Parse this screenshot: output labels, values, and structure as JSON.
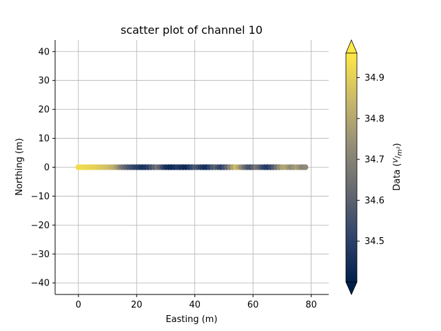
{
  "chart_data": {
    "type": "scatter",
    "title": "scatter plot of channel 10",
    "xlabel": "Easting (m)",
    "ylabel": "Northing (m)",
    "xlim": [
      -8,
      86
    ],
    "ylim": [
      -44,
      44
    ],
    "xticks": [
      0,
      20,
      40,
      60,
      80
    ],
    "yticks": [
      -40,
      -30,
      -20,
      -10,
      0,
      10,
      20,
      30,
      40
    ],
    "grid": true,
    "colorbar": {
      "label": "Data (V/m²)",
      "range": [
        34.4,
        34.96
      ],
      "ticks": [
        34.5,
        34.6,
        34.7,
        34.8,
        34.9
      ],
      "extend": "both",
      "colormap": "cividis",
      "stops": [
        "#00204c",
        "#31446b",
        "#666970",
        "#958f78",
        "#cbba69",
        "#ffe945"
      ]
    },
    "points": {
      "x": [
        0,
        1,
        2,
        3,
        4,
        5,
        6,
        7,
        8,
        9,
        10,
        11,
        12,
        13,
        14,
        15,
        16,
        17,
        18,
        19,
        20,
        21,
        22,
        23,
        24,
        25,
        26,
        27,
        28,
        29,
        30,
        31,
        32,
        33,
        34,
        35,
        36,
        37,
        38,
        39,
        40,
        41,
        42,
        43,
        44,
        45,
        46,
        47,
        48,
        49,
        50,
        51,
        52,
        53,
        54,
        55,
        56,
        57,
        58,
        59,
        60,
        61,
        62,
        63,
        64,
        65,
        66,
        67,
        68,
        69,
        70,
        71,
        72,
        73,
        74,
        75,
        76,
        77,
        78
      ],
      "y": [
        0,
        0,
        0,
        0,
        0,
        0,
        0,
        0,
        0,
        0,
        0,
        0,
        0,
        0,
        0,
        0,
        0,
        0,
        0,
        0,
        0,
        0,
        0,
        0,
        0,
        0,
        0,
        0,
        0,
        0,
        0,
        0,
        0,
        0,
        0,
        0,
        0,
        0,
        0,
        0,
        0,
        0,
        0,
        0,
        0,
        0,
        0,
        0,
        0,
        0,
        0,
        0,
        0,
        0,
        0,
        0,
        0,
        0,
        0,
        0,
        0,
        0,
        0,
        0,
        0,
        0,
        0,
        0,
        0,
        0,
        0,
        0,
        0,
        0,
        0,
        0,
        0,
        0,
        0
      ],
      "value": [
        34.93,
        34.93,
        34.92,
        34.92,
        34.91,
        34.91,
        34.9,
        34.89,
        34.88,
        34.87,
        34.86,
        34.84,
        34.82,
        34.78,
        34.72,
        34.66,
        34.62,
        34.58,
        34.55,
        34.52,
        34.5,
        34.48,
        34.46,
        34.47,
        34.5,
        34.55,
        34.6,
        34.65,
        34.6,
        34.52,
        34.46,
        34.44,
        34.43,
        34.45,
        34.48,
        34.46,
        34.44,
        34.43,
        34.47,
        34.52,
        34.57,
        34.55,
        34.5,
        34.46,
        34.45,
        34.5,
        34.56,
        34.6,
        34.55,
        34.5,
        34.55,
        34.62,
        34.7,
        34.78,
        34.85,
        34.8,
        34.72,
        34.65,
        34.58,
        34.55,
        34.6,
        34.66,
        34.62,
        34.55,
        34.5,
        34.48,
        34.52,
        34.58,
        34.65,
        34.72,
        34.78,
        34.8,
        34.76,
        34.72,
        34.75,
        34.78,
        34.74,
        34.7,
        34.72
      ]
    }
  }
}
